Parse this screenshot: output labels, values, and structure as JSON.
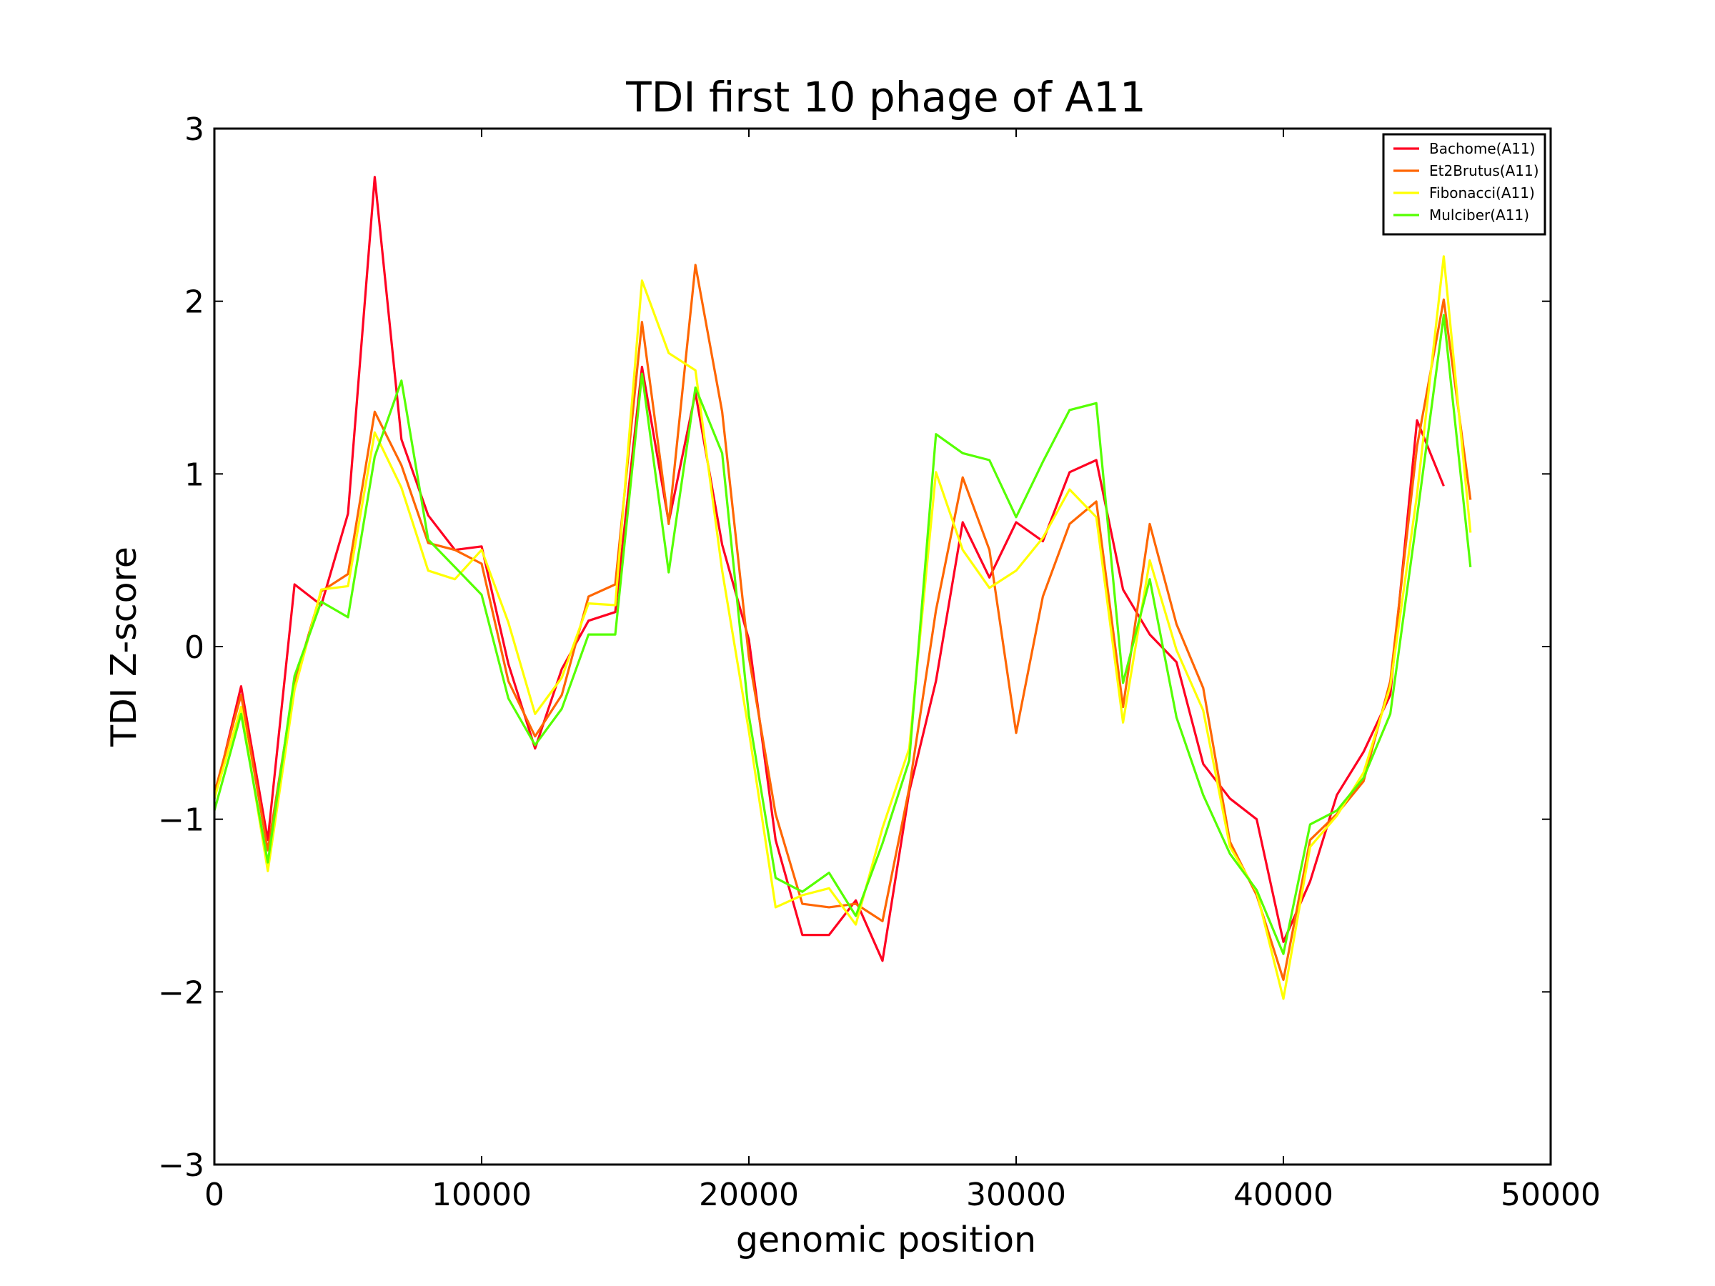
{
  "chart_data": {
    "type": "line",
    "title": "TDI first 10 phage of A11",
    "xlabel": "genomic position",
    "ylabel": "TDI Z-score",
    "xlim": [
      0,
      50000
    ],
    "ylim": [
      -3,
      3
    ],
    "xticks": [
      0,
      10000,
      20000,
      30000,
      40000,
      50000
    ],
    "xtick_labels": [
      "0",
      "10000",
      "20000",
      "30000",
      "40000",
      "50000"
    ],
    "yticks": [
      -3,
      -2,
      -1,
      0,
      1,
      2,
      3
    ],
    "ytick_labels": [
      "−3",
      "−2",
      "−1",
      "0",
      "1",
      "2",
      "3"
    ],
    "grid": false,
    "legend_position": "top-right",
    "series": [
      {
        "name": "Bachome(A11)",
        "color": "#ff0022",
        "x": [
          0,
          1000,
          2000,
          3000,
          4000,
          5000,
          6000,
          7000,
          8000,
          9000,
          10000,
          11000,
          12000,
          13000,
          14000,
          15000,
          16000,
          17000,
          18000,
          19000,
          20000,
          21000,
          22000,
          23000,
          24000,
          25000,
          26000,
          27000,
          28000,
          29000,
          30000,
          31000,
          32000,
          33000,
          34000,
          35000,
          36000,
          37000,
          38000,
          39000,
          40000,
          41000,
          42000,
          43000,
          44000,
          45000,
          46000
        ],
        "y": [
          -0.88,
          -0.23,
          -1.12,
          0.36,
          0.24,
          0.77,
          2.72,
          1.2,
          0.76,
          0.56,
          0.58,
          -0.1,
          -0.59,
          -0.13,
          0.15,
          0.2,
          1.62,
          0.72,
          1.47,
          0.59,
          0.04,
          -1.12,
          -1.67,
          -1.67,
          -1.47,
          -1.82,
          -0.84,
          -0.2,
          0.72,
          0.4,
          0.72,
          0.61,
          1.01,
          1.08,
          0.33,
          0.07,
          -0.09,
          -0.68,
          -0.88,
          -1.0,
          -1.71,
          -1.36,
          -0.86,
          -0.61,
          -0.28,
          1.31,
          0.93
        ]
      },
      {
        "name": "Et2Brutus(A11)",
        "color": "#ff6600",
        "x": [
          0,
          1000,
          2000,
          3000,
          4000,
          5000,
          6000,
          7000,
          8000,
          9000,
          10000,
          11000,
          12000,
          13000,
          14000,
          15000,
          16000,
          17000,
          18000,
          19000,
          20000,
          21000,
          22000,
          23000,
          24000,
          25000,
          26000,
          27000,
          28000,
          29000,
          30000,
          31000,
          32000,
          33000,
          34000,
          35000,
          36000,
          37000,
          38000,
          39000,
          40000,
          41000,
          42000,
          43000,
          44000,
          45000,
          46000,
          47000
        ],
        "y": [
          -0.85,
          -0.28,
          -1.18,
          -0.21,
          0.32,
          0.42,
          1.36,
          1.05,
          0.6,
          0.56,
          0.48,
          -0.2,
          -0.52,
          -0.28,
          0.29,
          0.36,
          1.88,
          0.71,
          2.21,
          1.36,
          -0.06,
          -0.97,
          -1.49,
          -1.51,
          -1.49,
          -1.59,
          -0.82,
          0.21,
          0.98,
          0.56,
          -0.5,
          0.29,
          0.71,
          0.84,
          -0.35,
          0.71,
          0.13,
          -0.24,
          -1.13,
          -1.44,
          -1.93,
          -1.12,
          -0.97,
          -0.78,
          -0.2,
          1.16,
          2.01,
          0.85
        ]
      },
      {
        "name": "Fibonacci(A11)",
        "color": "#ffff00",
        "x": [
          0,
          1000,
          2000,
          3000,
          4000,
          5000,
          6000,
          7000,
          8000,
          9000,
          10000,
          11000,
          12000,
          13000,
          14000,
          15000,
          16000,
          17000,
          18000,
          19000,
          20000,
          21000,
          22000,
          23000,
          24000,
          25000,
          26000,
          27000,
          28000,
          29000,
          30000,
          31000,
          32000,
          33000,
          34000,
          35000,
          36000,
          37000,
          38000,
          39000,
          40000,
          41000,
          42000,
          43000,
          44000,
          45000,
          46000,
          47000
        ],
        "y": [
          -0.88,
          -0.35,
          -1.3,
          -0.25,
          0.33,
          0.35,
          1.24,
          0.92,
          0.44,
          0.39,
          0.56,
          0.14,
          -0.39,
          -0.18,
          0.25,
          0.24,
          2.12,
          1.7,
          1.6,
          0.44,
          -0.49,
          -1.51,
          -1.44,
          -1.4,
          -1.61,
          -1.05,
          -0.59,
          1.01,
          0.56,
          0.34,
          0.44,
          0.63,
          0.91,
          0.75,
          -0.44,
          0.5,
          -0.02,
          -0.37,
          -1.16,
          -1.42,
          -2.04,
          -1.16,
          -0.98,
          -0.73,
          -0.23,
          0.88,
          2.26,
          0.66
        ]
      },
      {
        "name": "Mulciber(A11)",
        "color": "#55ff00",
        "x": [
          0,
          1000,
          2000,
          3000,
          4000,
          5000,
          6000,
          7000,
          8000,
          9000,
          10000,
          11000,
          12000,
          13000,
          14000,
          15000,
          16000,
          17000,
          18000,
          19000,
          20000,
          21000,
          22000,
          23000,
          24000,
          25000,
          26000,
          27000,
          28000,
          29000,
          30000,
          31000,
          32000,
          33000,
          34000,
          35000,
          36000,
          37000,
          38000,
          39000,
          40000,
          41000,
          42000,
          43000,
          44000,
          45000,
          46000,
          47000
        ],
        "y": [
          -0.95,
          -0.39,
          -1.25,
          -0.17,
          0.26,
          0.17,
          1.1,
          1.54,
          0.62,
          0.46,
          0.3,
          -0.3,
          -0.57,
          -0.36,
          0.07,
          0.07,
          1.58,
          0.43,
          1.5,
          1.12,
          -0.4,
          -1.34,
          -1.42,
          -1.31,
          -1.56,
          -1.14,
          -0.66,
          1.23,
          1.12,
          1.08,
          0.75,
          1.07,
          1.37,
          1.41,
          -0.21,
          0.39,
          -0.41,
          -0.86,
          -1.2,
          -1.41,
          -1.78,
          -1.03,
          -0.95,
          -0.76,
          -0.39,
          0.75,
          1.92,
          0.46
        ]
      }
    ]
  }
}
